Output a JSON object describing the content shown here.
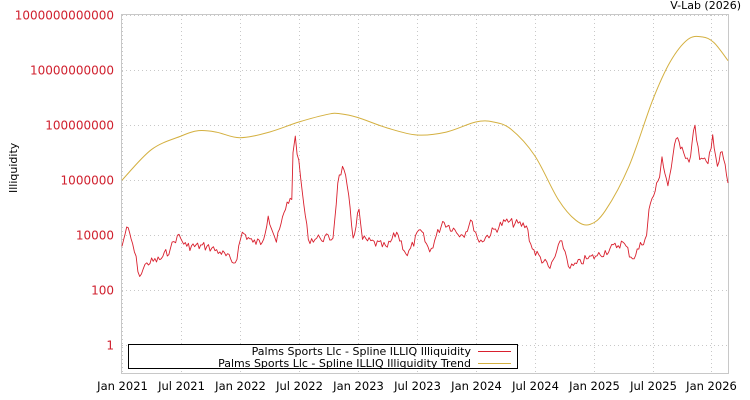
{
  "chart_data": {
    "type": "line",
    "title": "",
    "credit": "V-Lab (2026)",
    "xlabel": "",
    "ylabel": "Illiquidity",
    "yscale": "log",
    "ylim": [
      0.1,
      1000000000000
    ],
    "xlim": [
      2021.0,
      2026.14
    ],
    "grid": true,
    "legend_position": "bottom-left",
    "y_ticks": [
      {
        "value": 1000000000000,
        "label": "1000000000000"
      },
      {
        "value": 10000000000,
        "label": "10000000000"
      },
      {
        "value": 100000000,
        "label": "100000000"
      },
      {
        "value": 1000000,
        "label": "1000000"
      },
      {
        "value": 10000,
        "label": "10000"
      },
      {
        "value": 100,
        "label": "100"
      },
      {
        "value": 1,
        "label": "1"
      }
    ],
    "x_ticks": [
      {
        "value": 2021.0,
        "label": "Jan 2021"
      },
      {
        "value": 2021.5,
        "label": "Jul 2021"
      },
      {
        "value": 2022.0,
        "label": "Jan 2022"
      },
      {
        "value": 2022.5,
        "label": "Jul 2022"
      },
      {
        "value": 2023.0,
        "label": "Jan 2023"
      },
      {
        "value": 2023.5,
        "label": "Jul 2023"
      },
      {
        "value": 2024.0,
        "label": "Jan 2024"
      },
      {
        "value": 2024.5,
        "label": "Jul 2024"
      },
      {
        "value": 2025.0,
        "label": "Jan 2025"
      },
      {
        "value": 2025.5,
        "label": "Jul 2025"
      },
      {
        "value": 2026.0,
        "label": "Jan 2026"
      }
    ],
    "series": [
      {
        "name": "Palms Sports Llc - Spline ILLIQ Illiquidity",
        "color": "#d9202e",
        "x": [
          2021.0,
          2021.04,
          2021.09,
          2021.15,
          2021.21,
          2021.32,
          2021.41,
          2021.47,
          2021.55,
          2021.72,
          2021.83,
          2021.96,
          2022.02,
          2022.11,
          2022.19,
          2022.24,
          2022.31,
          2022.4,
          2022.44,
          2022.45,
          2022.47,
          2022.53,
          2022.58,
          2022.68,
          2022.79,
          2022.83,
          2022.87,
          2022.91,
          2022.96,
          2023.01,
          2023.04,
          2023.25,
          2023.33,
          2023.42,
          2023.53,
          2023.61,
          2023.72,
          2023.89,
          2023.97,
          2024.03,
          2024.25,
          2024.43,
          2024.48,
          2024.63,
          2024.73,
          2024.8,
          2024.94,
          2025.03,
          2025.25,
          2025.33,
          2025.45,
          2025.47,
          2025.56,
          2025.58,
          2025.63,
          2025.7,
          2025.75,
          2025.81,
          2025.86,
          2025.9,
          2025.97,
          2026.01,
          2026.05,
          2026.09,
          2026.14
        ],
        "y": [
          4000.0,
          20000.0,
          5000.0,
          320.0,
          1000.0,
          1300.0,
          3200.0,
          10000.0,
          4000.0,
          4000.0,
          2500.0,
          1000.0,
          13000.0,
          5600.0,
          5600.0,
          50000.0,
          5600.0,
          160000.0,
          200000.0,
          10000000.0,
          40000000.0,
          350000.0,
          7100.0,
          7900.0,
          7900.0,
          790000.0,
          3200000.0,
          630000.0,
          7900.0,
          89000.0,
          7100.0,
          3700.0,
          13000.0,
          1800.0,
          16000.0,
          2500.0,
          32000.0,
          10000.0,
          32000.0,
          5600.0,
          32000.0,
          22000.0,
          3200.0,
          630.0,
          6300.0,
          630.0,
          1400.0,
          1800.0,
          5600.0,
          1400.0,
          10000.0,
          89000.0,
          1300000.0,
          7100000.0,
          630000.0,
          32000000.0,
          16000000.0,
          4500000.0,
          100000000.0,
          5600000.0,
          4000000.0,
          45000000.0,
          3200000.0,
          11000000.0,
          790000.0
        ]
      },
      {
        "name": "Palms Sports Llc - Spline ILLIQ Illiquidity Trend",
        "color": "#d4b040",
        "x": [
          2021.0,
          2021.25,
          2021.5,
          2021.65,
          2021.8,
          2022.0,
          2022.25,
          2022.5,
          2022.75,
          2022.85,
          2023.0,
          2023.25,
          2023.5,
          2023.75,
          2024.0,
          2024.15,
          2024.3,
          2024.5,
          2024.7,
          2024.85,
          2024.97,
          2025.1,
          2025.3,
          2025.5,
          2025.65,
          2025.8,
          2025.92,
          2026.02,
          2026.14
        ],
        "y": [
          1000000.0,
          13000000.0,
          40000000.0,
          63000000.0,
          56000000.0,
          35000000.0,
          56000000.0,
          130000000.0,
          250000000.0,
          260000000.0,
          190000000.0,
          79000000.0,
          44000000.0,
          56000000.0,
          130000000.0,
          130000000.0,
          71000000.0,
          7900000.0,
          200000.0,
          35000.0,
          25000.0,
          79000.0,
          3200000.0,
          790000000.0,
          20000000000.0,
          130000000000.0,
          160000000000.0,
          100000000000.0,
          22000000000.0
        ]
      }
    ]
  }
}
